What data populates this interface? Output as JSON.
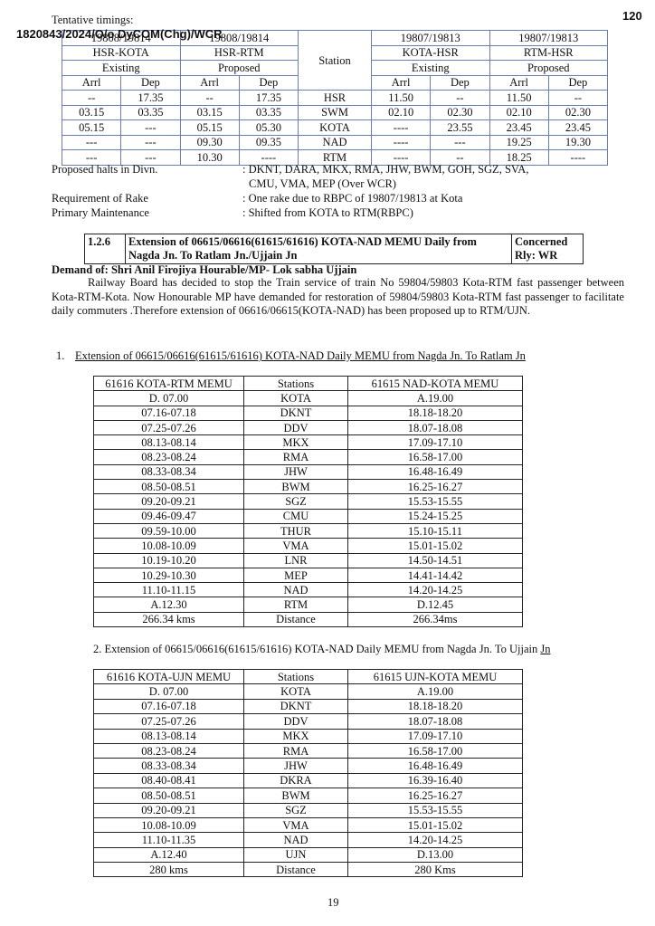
{
  "page_number": "120",
  "stamp": "1820843/2024/O/o DyCOM(Chg)/WCR",
  "tentative": "Tentative timings:",
  "timing_table": {
    "trains": [
      "19808/19814",
      "19808/19814",
      "19807/19813",
      "19807/19813"
    ],
    "routes": [
      "HSR-KOTA",
      "HSR-RTM",
      "KOTA-HSR",
      "RTM-HSR"
    ],
    "status": [
      "Existing",
      "Proposed",
      "Existing",
      "Proposed"
    ],
    "station_header": "Station",
    "subheaders": [
      "Arrl",
      "Dep",
      "Arrl",
      "Dep",
      "Arrl",
      "Dep",
      "Arrl",
      "Dep"
    ],
    "rows": [
      [
        "--",
        "17.35",
        "--",
        "17.35",
        "HSR",
        "11.50",
        "--",
        "11.50",
        "--"
      ],
      [
        "03.15",
        "03.35",
        "03.15",
        "03.35",
        "SWM",
        "02.10",
        "02.30",
        "02.10",
        "02.30"
      ],
      [
        "05.15",
        "---",
        "05.15",
        "05.30",
        "KOTA",
        "----",
        "23.55",
        "23.45",
        "23.45"
      ],
      [
        "---",
        "---",
        "09.30",
        "09.35",
        "NAD",
        "----",
        "---",
        "19.25",
        "19.30"
      ],
      [
        "---",
        "---",
        "10.30",
        "----",
        "RTM",
        "----",
        "--",
        "18.25",
        "----"
      ]
    ]
  },
  "info": [
    [
      "Proposed halts in Divn.",
      ": DKNT, DARA, MKX, RMA, JHW, BWM, GOH, SGZ, SVA,",
      "CMU, VMA, MEP (Over WCR)"
    ],
    [
      "Requirement of Rake",
      ": One rake due to RBPC of 19807/19813 at Kota"
    ],
    [
      "Primary Maintenance",
      ": Shifted from KOTA to RTM(RBPC)"
    ]
  ],
  "item": {
    "number": "1.2.6",
    "title": "Extension of 06615/06616(61615/61616) KOTA-NAD MEMU Daily from Nagda Jn. To Ratlam Jn./Ujjain Jn",
    "concerned": "Concerned Rly: WR"
  },
  "demand": "Demand of:  Shri Anil Firojiya Hourable/MP- Lok sabha Ujjain",
  "paragraph": "Railway Board has decided to stop the Train service of train No 59804/59803 Kota-RTM fast passenger between Kota-RTM-Kota. Now Honourable MP have demanded for restoration of 59804/59803 Kota-RTM fast passenger to facilitate daily  commuters .Therefore  extension of 06616/06615(KOTA-NAD) has been proposed up to RTM/UJN.",
  "section1": {
    "number": "1.",
    "heading": "Extension of 06615/06616(61615/61616) KOTA-NAD Daily MEMU from Nagda Jn. To Ratlam Jn"
  },
  "table1": {
    "header": [
      "61616 KOTA-RTM MEMU",
      "Stations",
      "61615 NAD-KOTA  MEMU"
    ],
    "rows": [
      [
        "D. 07.00",
        "KOTA",
        "A.19.00"
      ],
      [
        "07.16-07.18",
        "DKNT",
        "18.18-18.20"
      ],
      [
        "07.25-07.26",
        "DDV",
        "18.07-18.08"
      ],
      [
        "08.13-08.14",
        "MKX",
        "17.09-17.10"
      ],
      [
        "08.23-08.24",
        "RMA",
        "16.58-17.00"
      ],
      [
        "08.33-08.34",
        "JHW",
        "16.48-16.49"
      ],
      [
        "08.50-08.51",
        "BWM",
        "16.25-16.27"
      ],
      [
        "09.20-09.21",
        "SGZ",
        "15.53-15.55"
      ],
      [
        "09.46-09.47",
        "CMU",
        "15.24-15.25"
      ],
      [
        "09.59-10.00",
        "THUR",
        "15.10-15.11"
      ],
      [
        "10.08-10.09",
        "VMA",
        "15.01-15.02"
      ],
      [
        "10.19-10.20",
        "LNR",
        "14.50-14.51"
      ],
      [
        "10.29-10.30",
        "MEP",
        "14.41-14.42"
      ],
      [
        "11.10-11.15",
        "NAD",
        "14.20-14.25"
      ],
      [
        "A.12.30",
        "RTM",
        "D.12.45"
      ],
      [
        "266.34 kms",
        "Distance",
        "266.34ms"
      ]
    ]
  },
  "section2": {
    "heading": "2. Extension of 06615/06616(61615/61616) KOTA-NAD Daily MEMU from Nagda Jn. To Ujjain",
    "underlined": "Jn"
  },
  "table2": {
    "header": [
      "61616 KOTA-UJN MEMU",
      "Stations",
      "61615 UJN-KOTA  MEMU"
    ],
    "rows": [
      [
        "D. 07.00",
        "KOTA",
        "A.19.00"
      ],
      [
        "07.16-07.18",
        "DKNT",
        "18.18-18.20"
      ],
      [
        "07.25-07.26",
        "DDV",
        "18.07-18.08"
      ],
      [
        "08.13-08.14",
        "MKX",
        "17.09-17.10"
      ],
      [
        "08.23-08.24",
        "RMA",
        "16.58-17.00"
      ],
      [
        "08.33-08.34",
        "JHW",
        "16.48-16.49"
      ],
      [
        "08.40-08.41",
        "DKRA",
        "16.39-16.40"
      ],
      [
        "08.50-08.51",
        "BWM",
        "16.25-16.27"
      ],
      [
        "09.20-09.21",
        "SGZ",
        "15.53-15.55"
      ],
      [
        "10.08-10.09",
        "VMA",
        "15.01-15.02"
      ],
      [
        "11.10-11.35",
        "NAD",
        "14.20-14.25"
      ],
      [
        "A.12.40",
        "UJN",
        "D.13.00"
      ],
      [
        "280 kms",
        "Distance",
        "280 Kms"
      ]
    ]
  },
  "footer": "19"
}
